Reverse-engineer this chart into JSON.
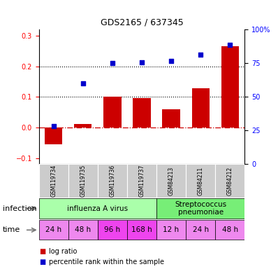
{
  "title": "GDS2165 / 637345",
  "samples": [
    "GSM119734",
    "GSM119735",
    "GSM119736",
    "GSM119737",
    "GSM84213",
    "GSM84211",
    "GSM84212"
  ],
  "log_ratio": [
    -0.055,
    0.012,
    0.1,
    0.095,
    0.06,
    0.128,
    0.265
  ],
  "percentile_rank": [
    0.005,
    0.145,
    0.21,
    0.212,
    0.218,
    0.238,
    0.27
  ],
  "bar_color": "#cc0000",
  "dot_color": "#0000cc",
  "ylim": [
    -0.12,
    0.32
  ],
  "yticks_left": [
    -0.1,
    0.0,
    0.1,
    0.2,
    0.3
  ],
  "yticks_right": [
    0,
    25,
    50,
    75,
    100
  ],
  "hline_y": [
    0.1,
    0.2
  ],
  "zero_line_y": 0.0,
  "infection_groups": [
    {
      "label": "influenza A virus",
      "start": 0,
      "end": 4,
      "color": "#aaffaa"
    },
    {
      "label": "Streptococcus\npneumoniae",
      "start": 4,
      "end": 7,
      "color": "#77ee77"
    }
  ],
  "time_labels": [
    "24 h",
    "48 h",
    "96 h",
    "168 h",
    "12 h",
    "24 h",
    "48 h"
  ],
  "time_colors": [
    "#ee88ee",
    "#ee88ee",
    "#ee44ee",
    "#ee44ee",
    "#ee88ee",
    "#ee88ee",
    "#ee88ee"
  ],
  "infection_label": "infection",
  "time_label": "time",
  "sample_box_color": "#cccccc",
  "legend_items": [
    {
      "color": "#cc0000",
      "label": "log ratio"
    },
    {
      "color": "#0000cc",
      "label": "percentile rank within the sample"
    }
  ]
}
